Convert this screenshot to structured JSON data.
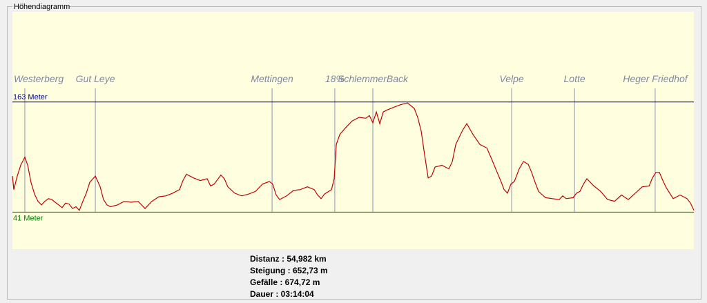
{
  "chart_data": {
    "type": "line",
    "title": "Höhendiagramm",
    "color": "#c00000",
    "background": "#ffffe0",
    "x": [
      0,
      0.11,
      0.39,
      0.67,
      1.0,
      1.23,
      1.5,
      1.78,
      2.06,
      2.34,
      2.62,
      2.9,
      3.18,
      3.45,
      3.73,
      4.01,
      4.29,
      4.57,
      4.85,
      5.13,
      5.4,
      5.68,
      5.96,
      6.24,
      6.69,
      7.08,
      7.35,
      7.63,
      7.91,
      8.47,
      9.03,
      9.58,
      10.14,
      10.7,
      11.25,
      11.81,
      12.37,
      12.93,
      13.48,
      13.76,
      14.04,
      14.6,
      15.15,
      15.71,
      15.99,
      16.27,
      16.82,
      17.1,
      17.38,
      17.94,
      18.5,
      19.05,
      19.61,
      20.17,
      20.73,
      21.0,
      21.28,
      21.56,
      22.12,
      22.67,
      23.23,
      23.79,
      24.35,
      24.62,
      24.9,
      25.18,
      25.74,
      25.96,
      26.13,
      26.41,
      26.85,
      27.41,
      27.97,
      28.52,
      28.8,
      29.08,
      29.36,
      29.64,
      29.92,
      30.2,
      30.75,
      31.31,
      31.87,
      32.42,
      32.7,
      32.98,
      33.26,
      33.54,
      33.82,
      34.1,
      34.65,
      35.21,
      35.49,
      35.77,
      36.33,
      36.66,
      37.16,
      37.72,
      38.28,
      38.66,
      39.11,
      39.39,
      39.67,
      39.94,
      40.22,
      40.5,
      40.89,
      41.23,
      41.62,
      41.89,
      42.17,
      42.45,
      43.01,
      43.56,
      44.12,
      44.4,
      44.68,
      45.24,
      45.51,
      45.79,
      46.07,
      46.35,
      46.63,
      46.91,
      47.46,
      48.02,
      48.58,
      49.14,
      49.69,
      50.25,
      50.81,
      51.37,
      51.64,
      51.92,
      52.2,
      52.48,
      52.76,
      53.31,
      53.87,
      54.43,
      54.71,
      54.98
    ],
    "values": [
      81,
      66,
      81,
      93,
      102,
      93,
      74,
      61,
      53,
      49,
      53,
      56,
      55,
      52,
      49,
      46,
      51,
      50,
      45,
      47,
      43,
      53,
      62,
      74,
      81,
      69,
      55,
      49,
      47,
      49,
      53,
      52,
      53,
      45,
      53,
      58,
      59,
      62,
      66,
      76,
      83,
      79,
      76,
      78,
      70,
      72,
      82,
      78,
      69,
      62,
      59,
      61,
      64,
      72,
      75,
      72,
      60,
      55,
      59,
      65,
      66,
      69,
      66,
      60,
      56,
      61,
      66,
      78,
      116,
      127,
      134,
      142,
      146,
      145,
      148,
      140,
      152,
      139,
      152,
      154,
      157,
      160,
      162,
      156,
      146,
      131,
      104,
      79,
      81,
      91,
      93,
      89,
      97,
      116,
      132,
      139,
      127,
      116,
      112,
      100,
      85,
      76,
      66,
      62,
      72,
      75,
      89,
      97,
      94,
      85,
      74,
      64,
      57,
      56,
      55,
      59,
      56,
      57,
      62,
      64,
      72,
      78,
      74,
      70,
      64,
      55,
      53,
      60,
      55,
      62,
      69,
      70,
      79,
      85,
      85,
      76,
      68,
      56,
      60,
      56,
      51,
      43
    ],
    "xlim": [
      0,
      54.982
    ],
    "ylim": [
      0,
      263
    ],
    "yticks": [
      {
        "value": 163,
        "label": "163 Meter"
      },
      {
        "value": 41,
        "label": "41 Meter"
      }
    ],
    "ytick_colors": [
      "#00008b",
      "#008000"
    ],
    "marker_color": "#8a93b5",
    "markers": [
      {
        "label": "Westerberg",
        "x": 1.0
      },
      {
        "label": "Gut Leye",
        "x": 6.69
      },
      {
        "label": "Mettingen",
        "x": 20.95
      },
      {
        "label": "18%",
        "x": 26.01
      },
      {
        "label": "SchlemmerBack",
        "x": 29.08
      },
      {
        "label": "Velpe",
        "x": 40.28
      },
      {
        "label": "Lotte",
        "x": 45.35
      },
      {
        "label": "Heger Friedhof",
        "x": 51.86
      }
    ]
  },
  "stats": [
    "Distanz : 54,982 km",
    "Steigung : 652,73 m",
    "Gefälle : 674,72 m",
    "Dauer : 03:14:04"
  ]
}
